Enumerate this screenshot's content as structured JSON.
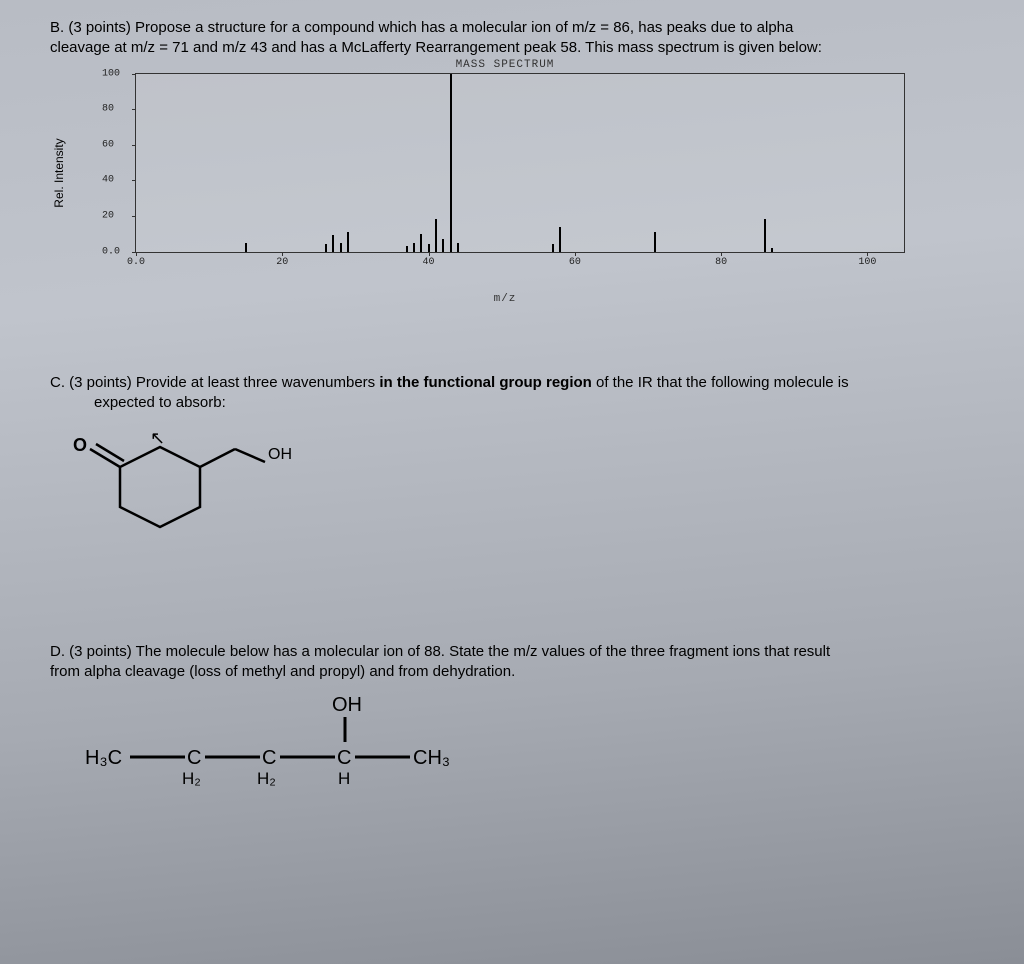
{
  "questionB": {
    "label": "B. (3 points)",
    "text1": "Propose a structure for a compound which has a molecular ion of m/z = 86, has peaks due to alpha",
    "text2": "cleavage at m/z = 71 and m/z 43 and has a McLafferty Rearrangement peak 58.  This mass spectrum is given below:"
  },
  "chart": {
    "title": "MASS SPECTRUM",
    "ylabel": "Rel. Intensity",
    "xlabel": "m/z",
    "xlim": [
      0,
      105
    ],
    "ylim": [
      0,
      100
    ],
    "yticks": [
      0.0,
      20,
      40,
      60,
      80,
      100
    ],
    "ytick_labels": [
      "0.0",
      "20",
      "40",
      "60",
      "80",
      "100"
    ],
    "xticks": [
      0.0,
      20,
      40,
      60,
      80,
      100
    ],
    "xtick_labels": [
      "0.0",
      "20",
      "40",
      "60",
      "80",
      "100"
    ],
    "peaks": [
      {
        "mz": 15,
        "intensity": 5
      },
      {
        "mz": 26,
        "intensity": 4
      },
      {
        "mz": 27,
        "intensity": 9
      },
      {
        "mz": 28,
        "intensity": 5
      },
      {
        "mz": 29,
        "intensity": 11
      },
      {
        "mz": 37,
        "intensity": 3
      },
      {
        "mz": 38,
        "intensity": 5
      },
      {
        "mz": 39,
        "intensity": 10
      },
      {
        "mz": 40,
        "intensity": 4
      },
      {
        "mz": 41,
        "intensity": 18
      },
      {
        "mz": 42,
        "intensity": 7
      },
      {
        "mz": 43,
        "intensity": 100
      },
      {
        "mz": 44,
        "intensity": 5
      },
      {
        "mz": 57,
        "intensity": 4
      },
      {
        "mz": 58,
        "intensity": 14
      },
      {
        "mz": 71,
        "intensity": 11
      },
      {
        "mz": 86,
        "intensity": 18
      },
      {
        "mz": 87,
        "intensity": 2
      }
    ],
    "bar_color": "#000000",
    "border_color": "#333333",
    "background": "transparent"
  },
  "questionC": {
    "label": "C. (3 points)",
    "text1": "Provide at least three wavenumbers",
    "bold": "in the functional group region",
    "text2": "of the IR that the following molecule is",
    "text3": "expected to absorb:",
    "oh_label": "OH",
    "o_label": "O"
  },
  "questionD": {
    "label": "D. (3 points)",
    "text1": "The molecule below has a molecular ion of 88.  State the m/z values of the three fragment ions that result",
    "text2": "from alpha cleavage (loss of methyl and propyl) and from dehydration.",
    "labels": {
      "oh": "OH",
      "h3c": "H₃C",
      "c": "C",
      "h2": "H₂",
      "h": "H",
      "ch3": "CH₃"
    }
  }
}
